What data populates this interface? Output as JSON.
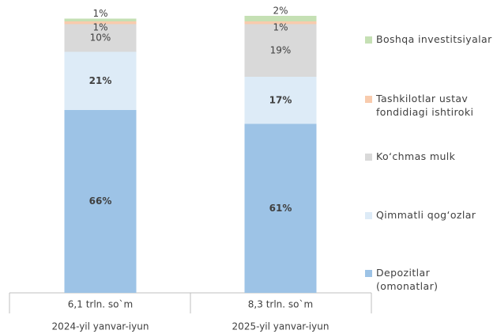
{
  "chart_data": {
    "type": "stacked-bar",
    "categories": [
      "2024-yil yanvar-iyun",
      "2025-yil yanvar-iyun"
    ],
    "category_totals": [
      "6,1 trln. so`m",
      "8,3 trln. so`m"
    ],
    "ylim": [
      0,
      100
    ],
    "series": [
      {
        "name": "Depozitlar (omonatlar)",
        "color": "#9dc3e6",
        "values": [
          66,
          61
        ],
        "value_labels": [
          "66%",
          "61%"
        ]
      },
      {
        "name": "Qimmatli qog‘ozlar",
        "color": "#ddebf7",
        "values": [
          21,
          17
        ],
        "value_labels": [
          "21%",
          "17%"
        ]
      },
      {
        "name": "Ko‘chmas mulk",
        "color": "#d9d9d9",
        "values": [
          10,
          19
        ],
        "value_labels": [
          "10%",
          "19%"
        ]
      },
      {
        "name": "Tashkilotlar ustav fondidiagi ishtiroki",
        "color": "#f8cbad",
        "values": [
          1,
          1
        ],
        "value_labels": [
          "1%",
          "1%"
        ]
      },
      {
        "name": "Boshqa investitsiyalar",
        "color": "#c5e0b4",
        "values": [
          1,
          2
        ],
        "value_labels": [
          "1%",
          "2%"
        ]
      }
    ]
  }
}
